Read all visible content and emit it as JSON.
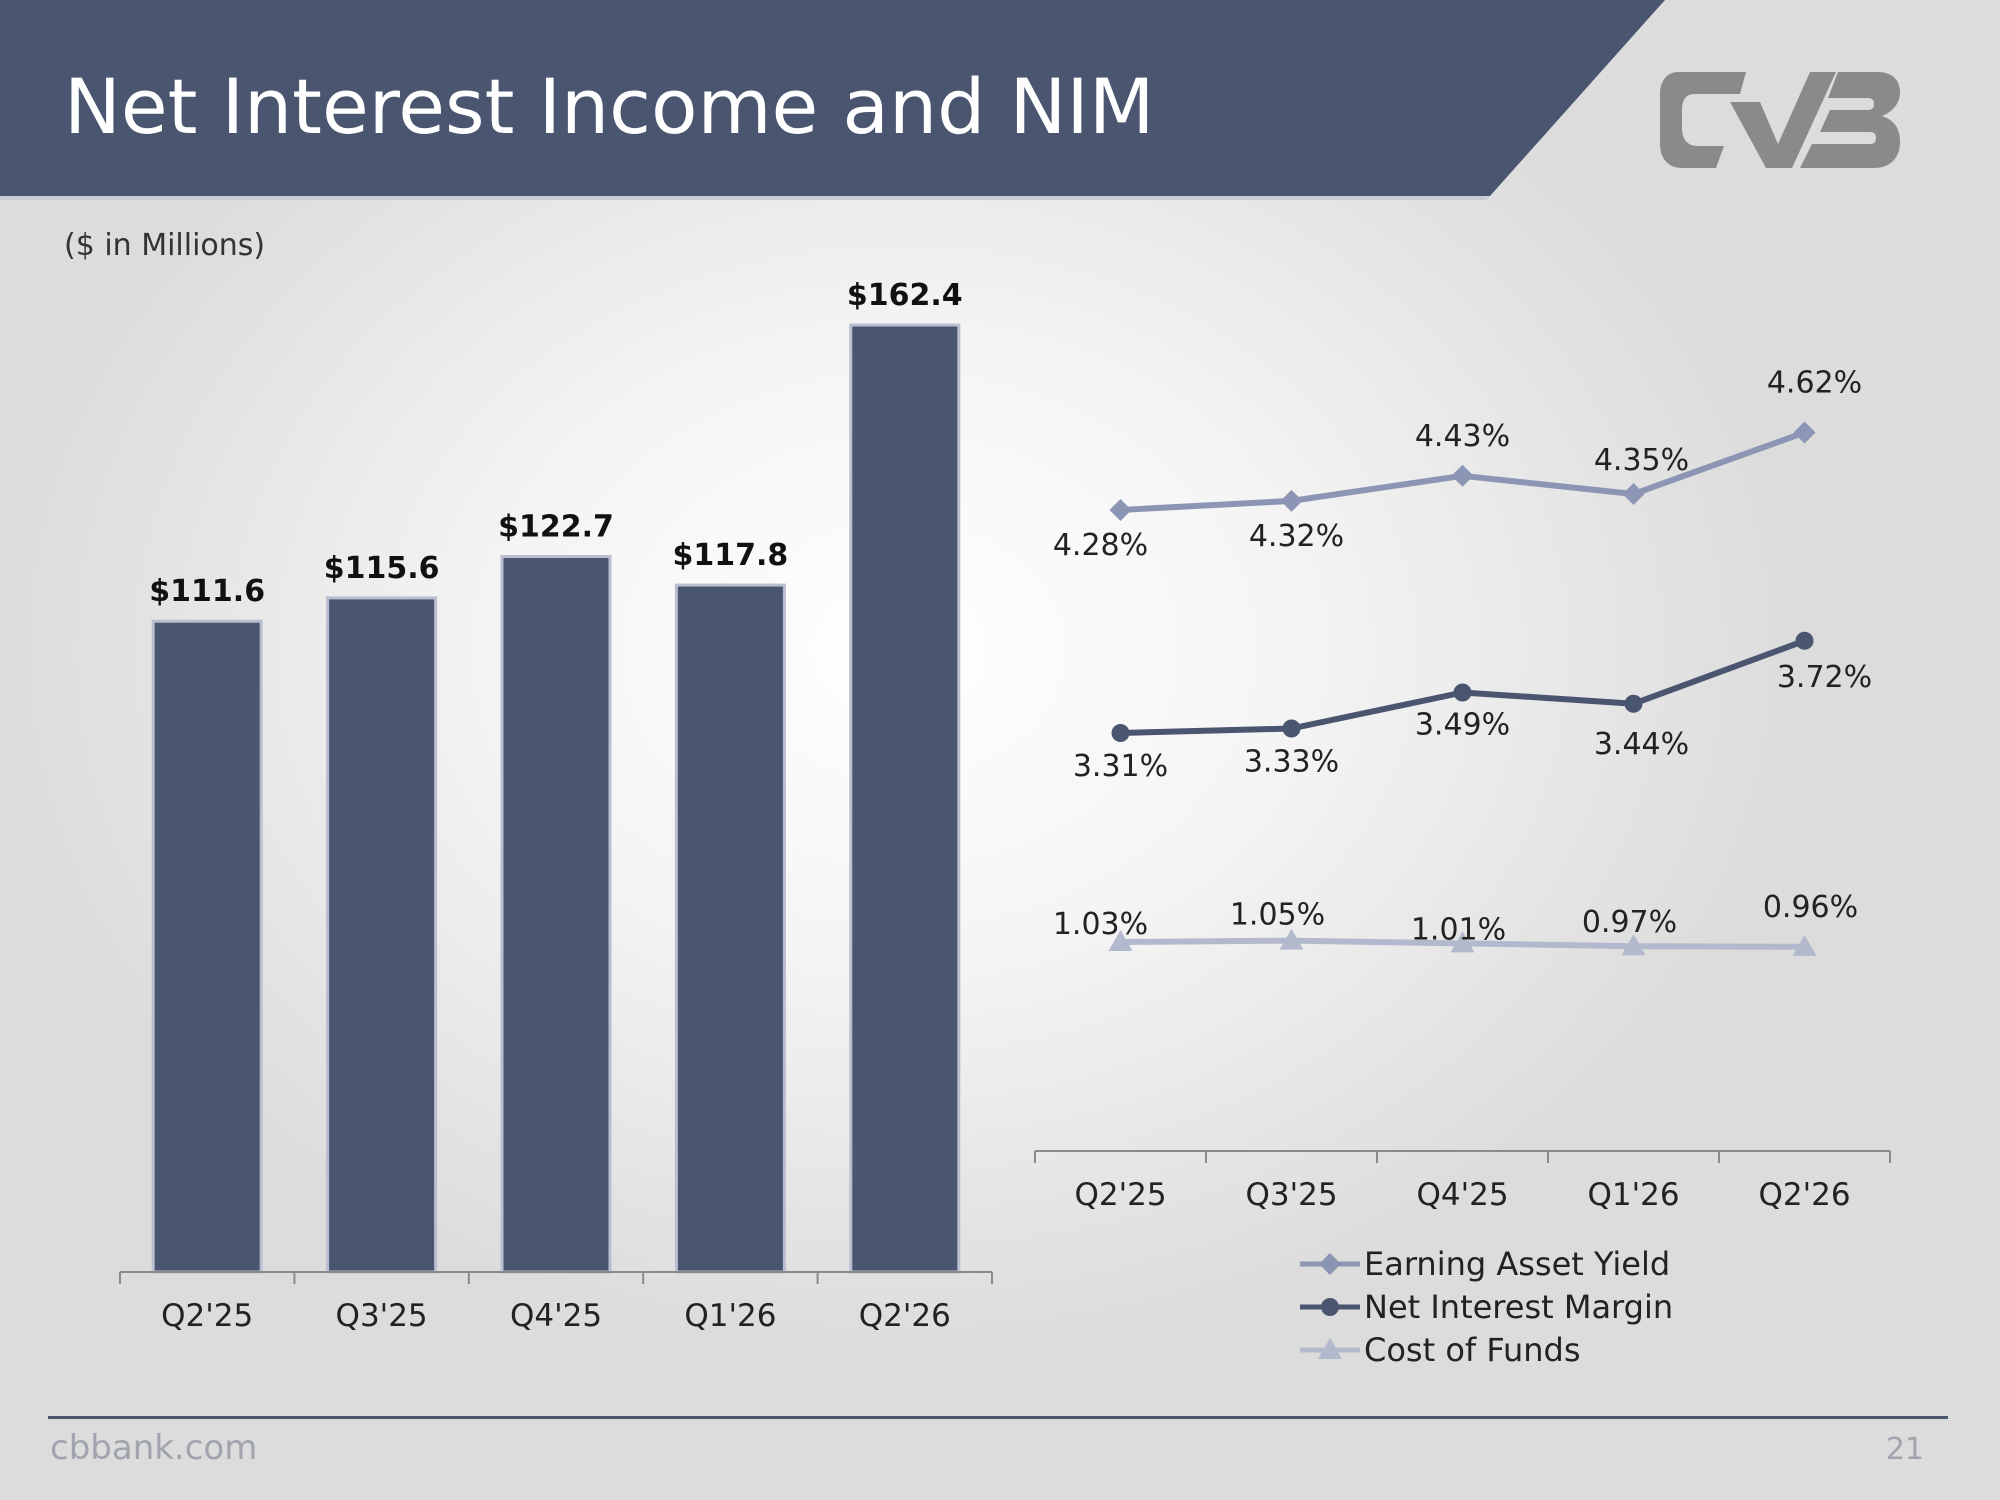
{
  "title": "Net Interest Income and NIM",
  "units_note": "($ in Millions)",
  "footer": {
    "site": "cbbank.com",
    "page": "21"
  },
  "colors": {
    "header_bg": "#4a5570",
    "bar_fill": "#4a5570",
    "bar_outline": "#b9bfd0",
    "earning_asset_yield": "#8c95b3",
    "net_interest_margin": "#4a5570",
    "cost_of_funds": "#b3b9cd",
    "logo": "#8a8a8a",
    "footer_rule": "#4a5570"
  },
  "chart_data": [
    {
      "type": "bar",
      "categories": [
        "Q2'25",
        "Q3'25",
        "Q4'25",
        "Q1'26",
        "Q2'26"
      ],
      "values": [
        111.6,
        115.6,
        122.7,
        117.8,
        162.4
      ],
      "data_labels": [
        "$111.6",
        "$115.6",
        "$122.7",
        "$117.8",
        "$162.4"
      ],
      "ylim": [
        0,
        170
      ]
    },
    {
      "type": "line",
      "categories": [
        "Q2'25",
        "Q3'25",
        "Q4'25",
        "Q1'26",
        "Q2'26"
      ],
      "series": [
        {
          "name": "Earning Asset Yield",
          "marker": "diamond",
          "values": [
            4.28,
            4.32,
            4.43,
            4.35,
            4.62
          ],
          "labels": [
            "4.28%",
            "4.32%",
            "4.43%",
            "4.35%",
            "4.62%"
          ]
        },
        {
          "name": "Net Interest Margin",
          "marker": "circle",
          "values": [
            3.31,
            3.33,
            3.49,
            3.44,
            3.72
          ],
          "labels": [
            "3.31%",
            "3.33%",
            "3.49%",
            "3.44%",
            "3.72%"
          ]
        },
        {
          "name": "Cost of Funds",
          "marker": "triangle",
          "values": [
            1.03,
            1.05,
            1.01,
            0.97,
            0.96
          ],
          "labels": [
            "1.03%",
            "1.05%",
            "1.01%",
            "0.97%",
            "0.96%"
          ]
        }
      ],
      "legend": "bottom"
    }
  ]
}
